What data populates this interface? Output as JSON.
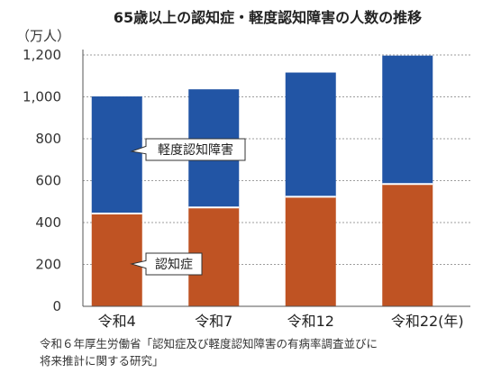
{
  "chart_data": {
    "type": "bar",
    "stacked": true,
    "title": "65歳以上の認知症・軽度認知障害の人数の推移",
    "unit_label": "（万人）",
    "categories": [
      "令和4",
      "令和7",
      "令和12",
      "令和22(年)"
    ],
    "series": [
      {
        "name": "認知症",
        "values": [
          443,
          472,
          523,
          584
        ],
        "color": "#bf5323"
      },
      {
        "name": "軽度認知障害",
        "values": [
          559,
          564,
          593,
          613
        ],
        "color": "#2255a5"
      }
    ],
    "ylim": [
      0,
      1200
    ],
    "yticks": [
      "0",
      "200",
      "400",
      "600",
      "800",
      "1,000",
      "1,200"
    ],
    "ytick_values": [
      0,
      200,
      400,
      600,
      800,
      1000,
      1200
    ],
    "grid": true,
    "grid_color": "#9e9e9e",
    "source_lines": [
      "令和６年厚生労働省「認知症及び軽度認知障害の有病率調査並びに",
      "将来推計に関する研究」"
    ]
  }
}
